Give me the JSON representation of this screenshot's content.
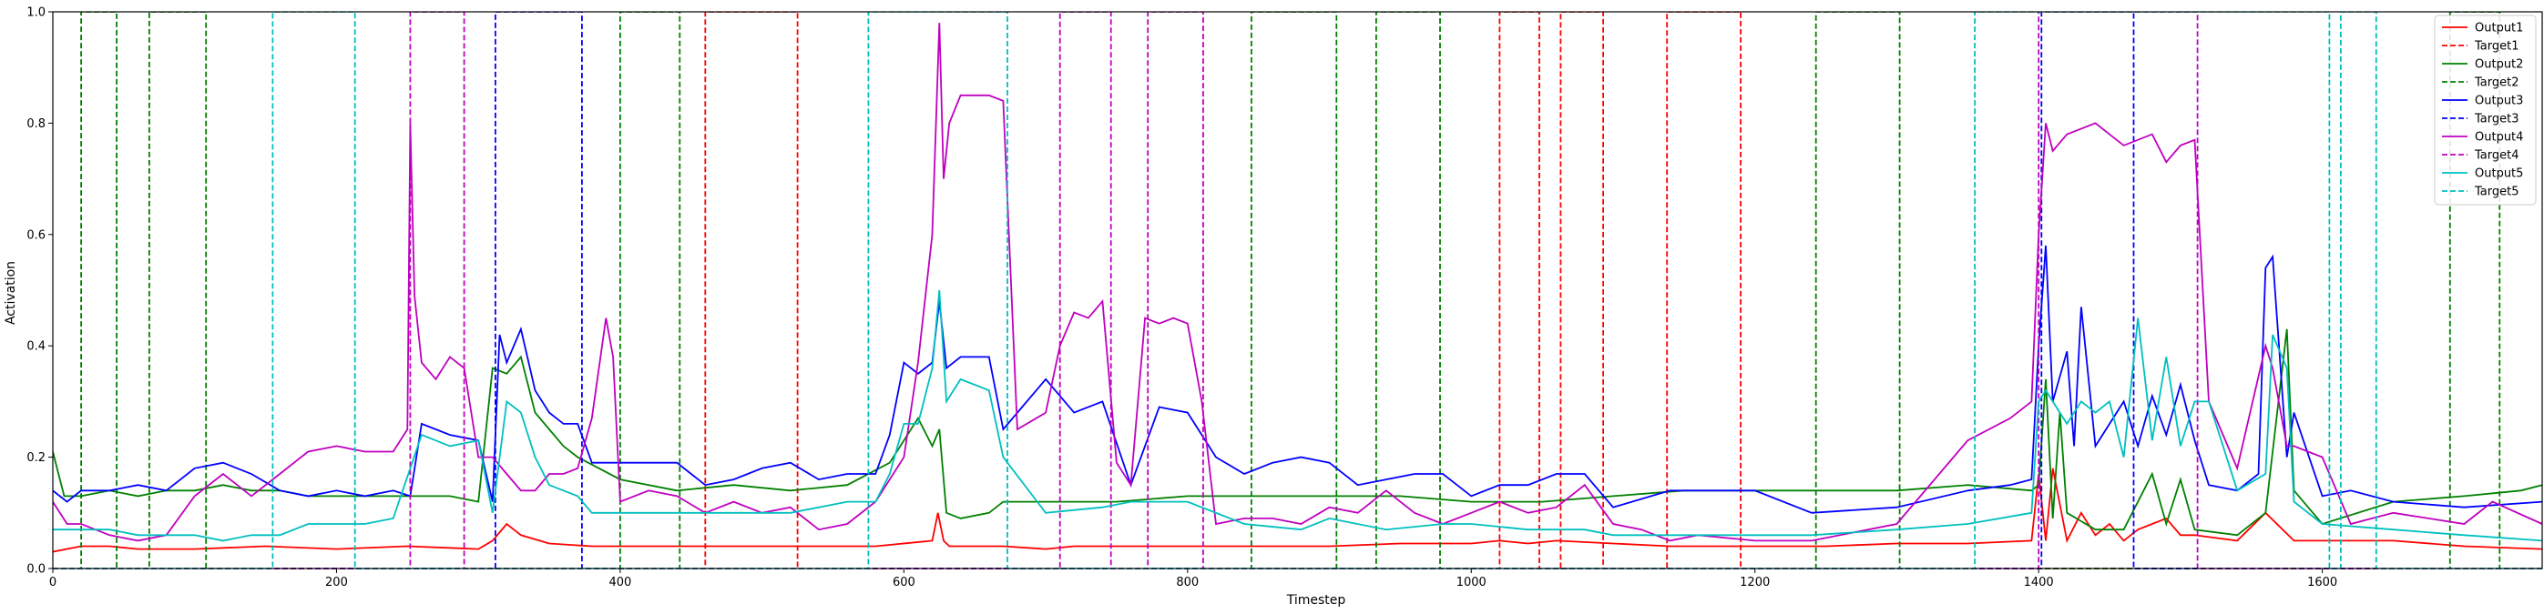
{
  "chart_data": {
    "type": "line",
    "title": "",
    "xlabel": "Timestep",
    "ylabel": "Activation",
    "xlim": [
      0,
      1755
    ],
    "ylim": [
      0,
      1.0
    ],
    "x_ticks": [
      0,
      200,
      400,
      600,
      800,
      1000,
      1200,
      1400,
      1600
    ],
    "x_tick_labels": [
      "0",
      "200",
      "400",
      "600",
      "800",
      "1000",
      "1200",
      "1400",
      "1600"
    ],
    "y_ticks": [
      0.0,
      0.2,
      0.4,
      0.6,
      0.8,
      1.0
    ],
    "y_tick_labels": [
      "0.0",
      "0.2",
      "0.4",
      "0.6",
      "0.8",
      "1.0"
    ],
    "grid": false,
    "legend_position": "top-right",
    "series": [
      {
        "name": "Output1",
        "style": "solid",
        "color": "#ff0000",
        "x": [
          0,
          20,
          40,
          60,
          100,
          150,
          200,
          250,
          300,
          310,
          320,
          330,
          350,
          380,
          420,
          460,
          500,
          540,
          580,
          620,
          624,
          628,
          632,
          640,
          670,
          700,
          720,
          750,
          780,
          800,
          850,
          900,
          950,
          1000,
          1020,
          1040,
          1060,
          1100,
          1140,
          1200,
          1250,
          1300,
          1350,
          1395,
          1400,
          1405,
          1410,
          1420,
          1430,
          1440,
          1450,
          1460,
          1470,
          1480,
          1490,
          1500,
          1510,
          1540,
          1560,
          1580,
          1600,
          1650,
          1700,
          1755
        ],
        "y": [
          0.03,
          0.04,
          0.04,
          0.035,
          0.035,
          0.04,
          0.035,
          0.04,
          0.035,
          0.05,
          0.08,
          0.06,
          0.045,
          0.04,
          0.04,
          0.04,
          0.04,
          0.04,
          0.04,
          0.05,
          0.1,
          0.05,
          0.04,
          0.04,
          0.04,
          0.035,
          0.04,
          0.04,
          0.04,
          0.04,
          0.04,
          0.04,
          0.045,
          0.045,
          0.05,
          0.045,
          0.05,
          0.045,
          0.04,
          0.04,
          0.04,
          0.045,
          0.045,
          0.05,
          0.17,
          0.05,
          0.18,
          0.05,
          0.1,
          0.06,
          0.08,
          0.05,
          0.07,
          0.08,
          0.09,
          0.06,
          0.06,
          0.05,
          0.1,
          0.05,
          0.05,
          0.05,
          0.04,
          0.035
        ]
      },
      {
        "name": "Target1",
        "style": "dashed",
        "color": "#ff0000",
        "pulses": [
          [
            460,
            525
          ],
          [
            1020,
            1048
          ],
          [
            1063,
            1093
          ],
          [
            1138,
            1190
          ]
        ]
      },
      {
        "name": "Output2",
        "style": "solid",
        "color": "#008000",
        "x": [
          0,
          4,
          8,
          20,
          40,
          60,
          80,
          100,
          120,
          140,
          160,
          180,
          200,
          220,
          240,
          260,
          280,
          300,
          310,
          320,
          330,
          340,
          350,
          360,
          370,
          400,
          440,
          480,
          520,
          560,
          590,
          610,
          620,
          625,
          630,
          640,
          660,
          670,
          700,
          750,
          800,
          850,
          900,
          950,
          1000,
          1050,
          1100,
          1150,
          1200,
          1250,
          1300,
          1350,
          1395,
          1400,
          1405,
          1410,
          1415,
          1420,
          1440,
          1460,
          1480,
          1490,
          1500,
          1510,
          1540,
          1560,
          1575,
          1580,
          1600,
          1650,
          1700,
          1740,
          1755
        ],
        "y": [
          0.21,
          0.17,
          0.13,
          0.13,
          0.14,
          0.13,
          0.14,
          0.14,
          0.15,
          0.14,
          0.14,
          0.13,
          0.13,
          0.13,
          0.13,
          0.13,
          0.13,
          0.12,
          0.36,
          0.35,
          0.38,
          0.28,
          0.25,
          0.22,
          0.2,
          0.16,
          0.14,
          0.15,
          0.14,
          0.15,
          0.19,
          0.27,
          0.22,
          0.25,
          0.1,
          0.09,
          0.1,
          0.12,
          0.12,
          0.12,
          0.13,
          0.13,
          0.13,
          0.13,
          0.12,
          0.12,
          0.13,
          0.14,
          0.14,
          0.14,
          0.14,
          0.15,
          0.14,
          0.15,
          0.34,
          0.09,
          0.28,
          0.1,
          0.07,
          0.07,
          0.17,
          0.08,
          0.16,
          0.07,
          0.06,
          0.1,
          0.43,
          0.14,
          0.08,
          0.12,
          0.13,
          0.14,
          0.15
        ]
      },
      {
        "name": "Target2",
        "style": "dashed",
        "color": "#008000",
        "pulses": [
          [
            20,
            45
          ],
          [
            68,
            108
          ],
          [
            400,
            442
          ],
          [
            845,
            905
          ],
          [
            933,
            978
          ],
          [
            1243,
            1302
          ],
          [
            1690,
            1725
          ]
        ]
      },
      {
        "name": "Output3",
        "style": "solid",
        "color": "#0000ff",
        "x": [
          0,
          10,
          20,
          40,
          60,
          80,
          100,
          120,
          140,
          160,
          180,
          200,
          220,
          240,
          252,
          260,
          280,
          300,
          310,
          315,
          320,
          330,
          340,
          350,
          360,
          370,
          380,
          400,
          440,
          460,
          480,
          500,
          520,
          540,
          560,
          580,
          590,
          600,
          610,
          620,
          625,
          630,
          640,
          660,
          670,
          700,
          720,
          740,
          760,
          780,
          800,
          820,
          840,
          860,
          880,
          900,
          920,
          940,
          960,
          980,
          1000,
          1020,
          1040,
          1060,
          1080,
          1100,
          1140,
          1200,
          1240,
          1300,
          1350,
          1380,
          1395,
          1400,
          1405,
          1410,
          1420,
          1425,
          1430,
          1440,
          1460,
          1470,
          1480,
          1490,
          1500,
          1510,
          1520,
          1540,
          1555,
          1560,
          1565,
          1575,
          1580,
          1600,
          1620,
          1650,
          1700,
          1755
        ],
        "y": [
          0.14,
          0.12,
          0.14,
          0.14,
          0.15,
          0.14,
          0.18,
          0.19,
          0.17,
          0.14,
          0.13,
          0.14,
          0.13,
          0.14,
          0.13,
          0.26,
          0.24,
          0.23,
          0.12,
          0.42,
          0.37,
          0.43,
          0.32,
          0.28,
          0.26,
          0.26,
          0.19,
          0.19,
          0.19,
          0.15,
          0.16,
          0.18,
          0.19,
          0.16,
          0.17,
          0.17,
          0.24,
          0.37,
          0.35,
          0.37,
          0.48,
          0.36,
          0.38,
          0.38,
          0.25,
          0.34,
          0.28,
          0.3,
          0.15,
          0.29,
          0.28,
          0.2,
          0.17,
          0.19,
          0.2,
          0.19,
          0.15,
          0.16,
          0.17,
          0.17,
          0.13,
          0.15,
          0.15,
          0.17,
          0.17,
          0.11,
          0.14,
          0.14,
          0.1,
          0.11,
          0.14,
          0.15,
          0.16,
          0.4,
          0.58,
          0.3,
          0.39,
          0.22,
          0.47,
          0.22,
          0.3,
          0.22,
          0.31,
          0.24,
          0.33,
          0.23,
          0.15,
          0.14,
          0.17,
          0.54,
          0.56,
          0.2,
          0.28,
          0.13,
          0.14,
          0.12,
          0.11,
          0.12
        ]
      },
      {
        "name": "Target3",
        "style": "dashed",
        "color": "#0000ff",
        "pulses": [
          [
            312,
            373
          ],
          [
            1402,
            1467
          ]
        ]
      },
      {
        "name": "Output4",
        "style": "solid",
        "color": "#bf00bf",
        "x": [
          0,
          10,
          20,
          40,
          60,
          80,
          100,
          120,
          140,
          160,
          180,
          200,
          220,
          240,
          250,
          252,
          255,
          260,
          270,
          280,
          290,
          300,
          310,
          320,
          330,
          340,
          350,
          360,
          370,
          380,
          390,
          395,
          400,
          420,
          440,
          460,
          480,
          500,
          520,
          540,
          560,
          580,
          600,
          610,
          620,
          625,
          628,
          632,
          640,
          660,
          670,
          680,
          700,
          710,
          720,
          730,
          740,
          750,
          760,
          770,
          780,
          790,
          800,
          810,
          820,
          840,
          860,
          880,
          900,
          920,
          940,
          960,
          980,
          1000,
          1020,
          1040,
          1060,
          1080,
          1100,
          1120,
          1140,
          1160,
          1200,
          1240,
          1300,
          1350,
          1380,
          1395,
          1400,
          1405,
          1410,
          1420,
          1440,
          1460,
          1480,
          1490,
          1500,
          1510,
          1520,
          1540,
          1560,
          1565,
          1575,
          1580,
          1600,
          1620,
          1650,
          1700,
          1720,
          1755
        ],
        "y": [
          0.12,
          0.08,
          0.08,
          0.06,
          0.05,
          0.06,
          0.13,
          0.17,
          0.13,
          0.17,
          0.21,
          0.22,
          0.21,
          0.21,
          0.25,
          0.8,
          0.49,
          0.37,
          0.34,
          0.38,
          0.36,
          0.2,
          0.2,
          0.17,
          0.14,
          0.14,
          0.17,
          0.17,
          0.18,
          0.27,
          0.45,
          0.38,
          0.12,
          0.14,
          0.13,
          0.1,
          0.12,
          0.1,
          0.11,
          0.07,
          0.08,
          0.12,
          0.2,
          0.37,
          0.6,
          0.98,
          0.7,
          0.8,
          0.85,
          0.85,
          0.84,
          0.25,
          0.28,
          0.4,
          0.46,
          0.45,
          0.48,
          0.19,
          0.15,
          0.45,
          0.44,
          0.45,
          0.44,
          0.3,
          0.08,
          0.09,
          0.09,
          0.08,
          0.11,
          0.1,
          0.14,
          0.1,
          0.08,
          0.1,
          0.12,
          0.1,
          0.11,
          0.15,
          0.08,
          0.07,
          0.05,
          0.06,
          0.05,
          0.05,
          0.08,
          0.23,
          0.27,
          0.3,
          0.6,
          0.8,
          0.75,
          0.78,
          0.8,
          0.76,
          0.78,
          0.73,
          0.76,
          0.77,
          0.3,
          0.18,
          0.4,
          0.36,
          0.22,
          0.22,
          0.2,
          0.08,
          0.1,
          0.08,
          0.12,
          0.08
        ]
      },
      {
        "name": "Target4",
        "style": "dashed",
        "color": "#bf00bf",
        "pulses": [
          [
            252,
            290
          ],
          [
            710,
            746
          ],
          [
            772,
            811
          ],
          [
            1400,
            1512
          ]
        ]
      },
      {
        "name": "Output5",
        "style": "solid",
        "color": "#00bfbf",
        "x": [
          0,
          20,
          40,
          60,
          80,
          100,
          120,
          140,
          160,
          180,
          200,
          220,
          240,
          260,
          280,
          300,
          310,
          320,
          330,
          340,
          350,
          360,
          370,
          380,
          400,
          440,
          480,
          520,
          560,
          580,
          590,
          600,
          610,
          620,
          625,
          630,
          640,
          660,
          670,
          700,
          740,
          760,
          780,
          800,
          840,
          880,
          900,
          940,
          980,
          1000,
          1040,
          1080,
          1100,
          1140,
          1200,
          1240,
          1300,
          1350,
          1395,
          1400,
          1405,
          1410,
          1420,
          1430,
          1440,
          1450,
          1460,
          1470,
          1480,
          1490,
          1500,
          1510,
          1520,
          1540,
          1560,
          1565,
          1575,
          1580,
          1600,
          1650,
          1700,
          1755
        ],
        "y": [
          0.07,
          0.07,
          0.07,
          0.06,
          0.06,
          0.06,
          0.05,
          0.06,
          0.06,
          0.08,
          0.08,
          0.08,
          0.09,
          0.24,
          0.22,
          0.23,
          0.1,
          0.3,
          0.28,
          0.2,
          0.15,
          0.14,
          0.13,
          0.1,
          0.1,
          0.1,
          0.1,
          0.1,
          0.12,
          0.12,
          0.17,
          0.26,
          0.26,
          0.36,
          0.5,
          0.3,
          0.34,
          0.32,
          0.2,
          0.1,
          0.11,
          0.12,
          0.12,
          0.12,
          0.08,
          0.07,
          0.09,
          0.07,
          0.08,
          0.08,
          0.07,
          0.07,
          0.06,
          0.06,
          0.06,
          0.06,
          0.07,
          0.08,
          0.1,
          0.3,
          0.32,
          0.3,
          0.26,
          0.3,
          0.28,
          0.3,
          0.2,
          0.45,
          0.23,
          0.38,
          0.22,
          0.3,
          0.3,
          0.14,
          0.17,
          0.42,
          0.36,
          0.12,
          0.08,
          0.07,
          0.06,
          0.05
        ]
      },
      {
        "name": "Target5",
        "style": "dashed",
        "color": "#00bfbf",
        "pulses": [
          [
            155,
            213
          ],
          [
            575,
            673
          ],
          [
            1355,
            1605
          ],
          [
            1613,
            1638
          ]
        ]
      }
    ]
  }
}
